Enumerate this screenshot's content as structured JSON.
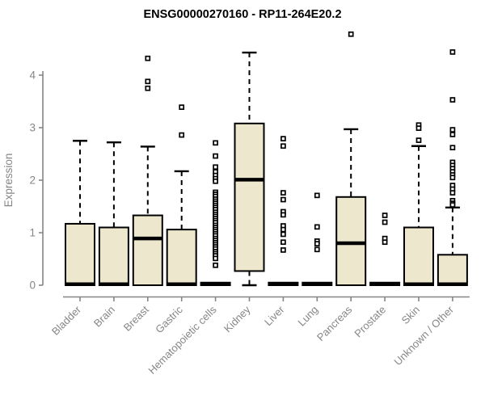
{
  "chart_data": {
    "type": "boxplot",
    "title": "ENSG00000270160 - RP11-264E20.2",
    "ylabel": "Expression",
    "xlabel": "",
    "ylim": [
      0,
      4.6
    ],
    "yticks": [
      0,
      1,
      2,
      3,
      4
    ],
    "grid": false,
    "legend": "none",
    "categories": [
      "Bladder",
      "Brain",
      "Breast",
      "Gastric",
      "Hematopoietic cells",
      "Kidney",
      "Liver",
      "Lung",
      "Pancreas",
      "Prostate",
      "Skin",
      "Unknown / Other"
    ],
    "series": [
      {
        "name": "Bladder",
        "whisker_low": 0,
        "q1": 0,
        "median": 0.02,
        "q3": 1.17,
        "whisker_high": 2.75,
        "outliers": []
      },
      {
        "name": "Brain",
        "whisker_low": 0,
        "q1": 0,
        "median": 0.02,
        "q3": 1.1,
        "whisker_high": 2.72,
        "outliers": []
      },
      {
        "name": "Breast",
        "whisker_low": 0,
        "q1": 0,
        "median": 0.89,
        "q3": 1.33,
        "whisker_high": 2.64,
        "outliers": [
          4.32,
          3.88,
          3.75
        ]
      },
      {
        "name": "Gastric",
        "whisker_low": 0,
        "q1": 0,
        "median": 0.02,
        "q3": 1.06,
        "whisker_high": 2.17,
        "outliers": [
          3.39,
          2.86
        ]
      },
      {
        "name": "Hematopoietic cells",
        "whisker_low": 0,
        "q1": 0,
        "median": 0.02,
        "q3": 0.05,
        "whisker_high": 0.05,
        "outliers": [
          2.71,
          2.46,
          2.25,
          2.16,
          2.09,
          2.03,
          1.98,
          1.77,
          1.73,
          1.69,
          1.64,
          1.6,
          1.56,
          1.52,
          1.48,
          1.44,
          1.39,
          1.35,
          1.31,
          1.27,
          1.23,
          1.19,
          1.14,
          1.1,
          1.06,
          1.02,
          0.98,
          0.94,
          0.89,
          0.85,
          0.81,
          0.77,
          0.73,
          0.69,
          0.64,
          0.6,
          0.56,
          0.51,
          0.38
        ]
      },
      {
        "name": "Kidney",
        "whisker_low": 0,
        "q1": 0.27,
        "median": 2.01,
        "q3": 3.08,
        "whisker_high": 4.43,
        "outliers": []
      },
      {
        "name": "Liver",
        "whisker_low": 0,
        "q1": 0,
        "median": 0.02,
        "q3": 0.05,
        "whisker_high": 0.05,
        "outliers": [
          2.79,
          2.65,
          1.76,
          1.63,
          1.4,
          1.34,
          1.13,
          1.06,
          0.97,
          0.82,
          0.67
        ]
      },
      {
        "name": "Lung",
        "whisker_low": 0,
        "q1": 0,
        "median": 0.02,
        "q3": 0.05,
        "whisker_high": 0.05,
        "outliers": [
          1.71,
          1.11,
          0.84,
          0.79,
          0.68
        ]
      },
      {
        "name": "Pancreas",
        "whisker_low": 0,
        "q1": 0,
        "median": 0.8,
        "q3": 1.68,
        "whisker_high": 2.97,
        "outliers": [
          4.78
        ]
      },
      {
        "name": "Prostate",
        "whisker_low": 0,
        "q1": 0,
        "median": 0.02,
        "q3": 0.05,
        "whisker_high": 0.05,
        "outliers": [
          1.33,
          1.2,
          0.89,
          0.82
        ]
      },
      {
        "name": "Skin",
        "whisker_low": 0,
        "q1": 0,
        "median": 0.02,
        "q3": 1.1,
        "whisker_high": 2.65,
        "outliers": [
          3.05,
          2.99,
          2.76
        ]
      },
      {
        "name": "Unknown / Other",
        "whisker_low": 0,
        "q1": 0,
        "median": 0.02,
        "q3": 0.58,
        "whisker_high": 1.48,
        "outliers": [
          4.44,
          3.53,
          2.96,
          2.87,
          2.62,
          2.34,
          2.28,
          2.22,
          2.16,
          2.1,
          2.05,
          1.9,
          1.83,
          1.76,
          1.61,
          1.56,
          1.53
        ]
      }
    ]
  },
  "colors": {
    "box_fill": "#ede7cd",
    "box_stroke": "#000000",
    "median": "#000000",
    "axis": "#868686",
    "tick_label": "#868686",
    "category_label": "#868686",
    "title": "#000000",
    "outlier_stroke": "#000000",
    "outlier_fill": "#ffffff",
    "background": "#ffffff"
  }
}
